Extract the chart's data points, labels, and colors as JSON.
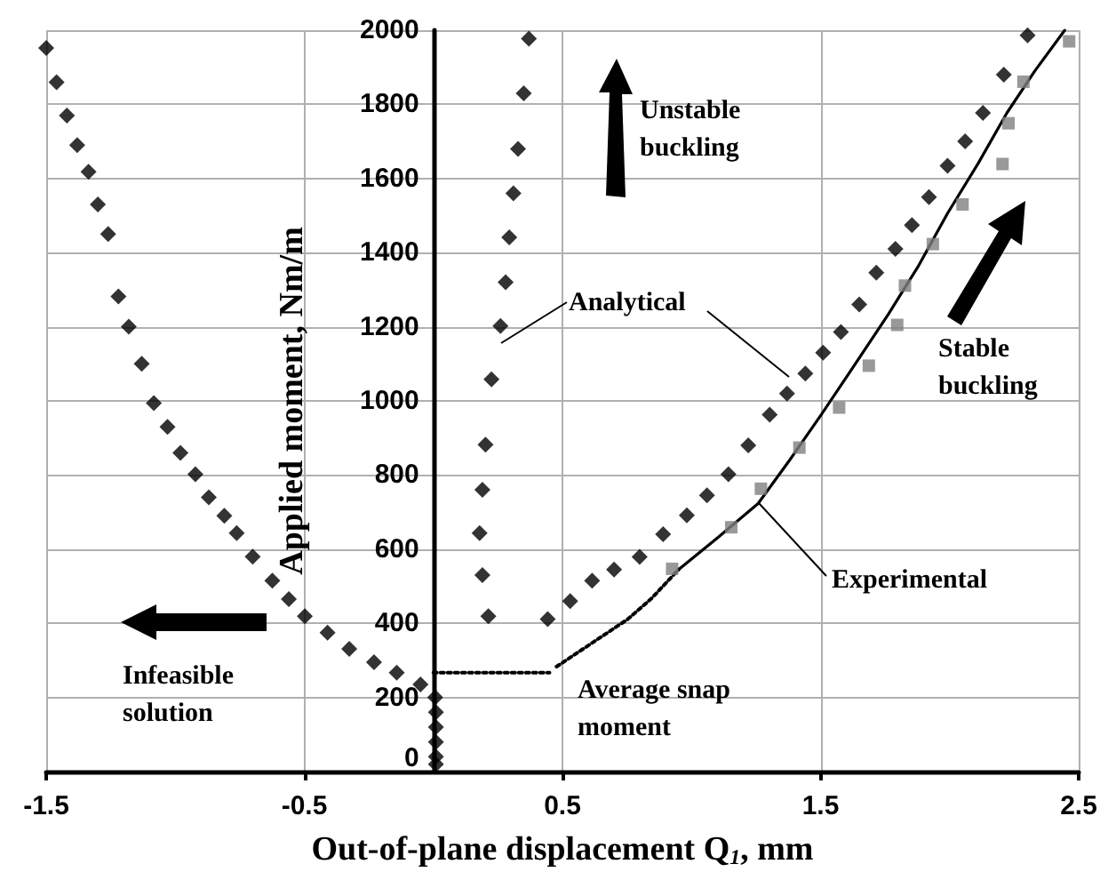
{
  "chart_data": {
    "type": "scatter",
    "xlabel": "Out-of-plane displacement Q$_{1}$, mm",
    "ylabel": "Applied moment, Nm/m",
    "xlim": [
      -1.5,
      2.5
    ],
    "ylim": [
      0,
      2000
    ],
    "xticks": [
      -1.5,
      -0.5,
      0.5,
      1.5,
      2.5
    ],
    "yticks": [
      0,
      200,
      400,
      600,
      800,
      1000,
      1200,
      1400,
      1600,
      1800,
      2000
    ],
    "grid": true,
    "annotations": [
      "Unstable buckling",
      "Stable buckling",
      "Infeasible solution",
      "Average snap moment"
    ],
    "series": [
      {
        "name": "Analytical",
        "marker": "diamond",
        "color": "#000000",
        "x": [
          -1.5,
          -1.46,
          -1.42,
          -1.38,
          -1.336,
          -1.3,
          -1.26,
          -1.22,
          -1.18,
          -1.13,
          -1.083,
          -1.03,
          -0.98,
          -0.922,
          -0.87,
          -0.81,
          -0.762,
          -0.7,
          -0.624,
          -0.56,
          -0.498,
          -0.41,
          -0.326,
          -0.23,
          -0.142,
          -0.05,
          0.007,
          0.01,
          0.01,
          0.01,
          0.01,
          0.01,
          0.213,
          0.19,
          0.179,
          0.19,
          0.202,
          0.225,
          0.26,
          0.28,
          0.294,
          0.31,
          0.328,
          0.35,
          0.37,
          0.443,
          0.53,
          0.615,
          0.7,
          0.799,
          0.89,
          0.982,
          1.06,
          1.143,
          1.22,
          1.303,
          1.37,
          1.441,
          1.51,
          1.579,
          1.65,
          1.716,
          1.79,
          1.854,
          1.92,
          1.992,
          2.06,
          2.129,
          2.21,
          2.302
        ],
        "values": [
          1952,
          1860,
          1770,
          1690,
          1618,
          1530,
          1450,
          1282,
          1200,
          1100,
          994,
          930,
          860,
          802,
          740,
          690,
          643,
          580,
          515,
          465,
          419,
          375,
          331,
          295,
          267,
          235,
          200,
          160,
          120,
          80,
          40,
          20,
          419,
          530,
          643,
          760,
          882,
          1058,
          1202,
          1320,
          1441,
          1560,
          1680,
          1830,
          1977,
          411,
          460,
          515,
          545,
          579,
          640,
          691,
          745,
          802,
          880,
          963,
          1020,
          1074,
          1130,
          1186,
          1260,
          1346,
          1410,
          1474,
          1550,
          1634,
          1700,
          1777,
          1880,
          1986
        ]
      },
      {
        "name": "Experimental",
        "marker": "square",
        "color": "#808080",
        "x": [
          0.925,
          1.154,
          1.269,
          1.418,
          1.572,
          1.687,
          1.797,
          1.827,
          1.935,
          2.05,
          2.205,
          2.228,
          2.286,
          2.463
        ],
        "values": [
          547,
          659,
          763,
          874,
          982,
          1095,
          1205,
          1311,
          1423,
          1530,
          1639,
          1749,
          1861,
          1970
        ]
      },
      {
        "type": "line",
        "marker": "none",
        "line_style": "solid",
        "color": "#000000",
        "x": [
          0.95,
          1.1,
          1.258,
          1.38,
          1.503,
          1.63,
          1.763,
          1.88,
          1.992,
          2.11,
          2.222,
          2.33,
          2.446
        ],
        "values": [
          545,
          630,
          723,
          840,
          963,
          1095,
          1234,
          1365,
          1506,
          1640,
          1777,
          1890,
          2000
        ]
      },
      {
        "type": "line",
        "marker": "none",
        "line_style": "dotted",
        "color": "#000000",
        "x": [
          0.477,
          0.615,
          0.753,
          0.845,
          0.95
        ],
        "values": [
          283,
          347,
          411,
          467,
          545
        ]
      },
      {
        "type": "line",
        "marker": "none",
        "line_style": "dotted",
        "color": "#000000",
        "x": [
          0,
          0.45
        ],
        "values": [
          267,
          267
        ]
      }
    ]
  }
}
